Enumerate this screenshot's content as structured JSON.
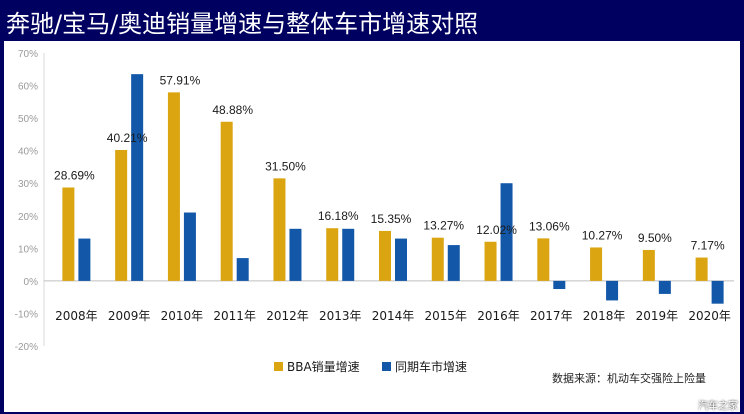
{
  "title": "奔驰/宝马/奥迪销量增速与整体车市增速对照",
  "source": "数据来源：机动车交强险上险量",
  "watermark": "汽车之家",
  "colors": {
    "bba": "#DBA511",
    "market": "#1257A8",
    "axis_text": "#9a9a9a",
    "zero_line": "#bfbfbf",
    "axis_line": "#d9d9d9"
  },
  "chart_data": {
    "type": "bar",
    "title": "奔驰/宝马/奥迪销量增速与整体车市增速对照",
    "xlabel": "",
    "ylabel": "",
    "ylim": [
      -20,
      70
    ],
    "yticks": [
      70,
      60,
      50,
      40,
      30,
      20,
      10,
      0,
      -10,
      -20
    ],
    "ytick_labels": [
      "70%",
      "60%",
      "50%",
      "40%",
      "30%",
      "20%",
      "10%",
      "0%",
      "-10%",
      "-20%"
    ],
    "categories": [
      "2008年",
      "2009年",
      "2010年",
      "2011年",
      "2012年",
      "2013年",
      "2014年",
      "2015年",
      "2016年",
      "2017年",
      "2018年",
      "2019年",
      "2020年"
    ],
    "series": [
      {
        "name": "BBA销量增速",
        "values": [
          28.69,
          40.21,
          57.91,
          48.88,
          31.5,
          16.18,
          15.35,
          13.27,
          12.02,
          13.06,
          10.27,
          9.5,
          7.17
        ],
        "labels": [
          "28.69%",
          "40.21%",
          "57.91%",
          "48.88%",
          "31.50%",
          "16.18%",
          "15.35%",
          "13.27%",
          "12.02%",
          "13.06%",
          "10.27%",
          "9.50%",
          "7.17%"
        ]
      },
      {
        "name": "同期车市增速",
        "values": [
          13,
          63.5,
          21,
          7,
          16,
          16,
          13,
          11,
          30,
          -2.5,
          -6,
          -4,
          -7
        ]
      }
    ],
    "legend_position": "bottom-center",
    "grid": false
  }
}
